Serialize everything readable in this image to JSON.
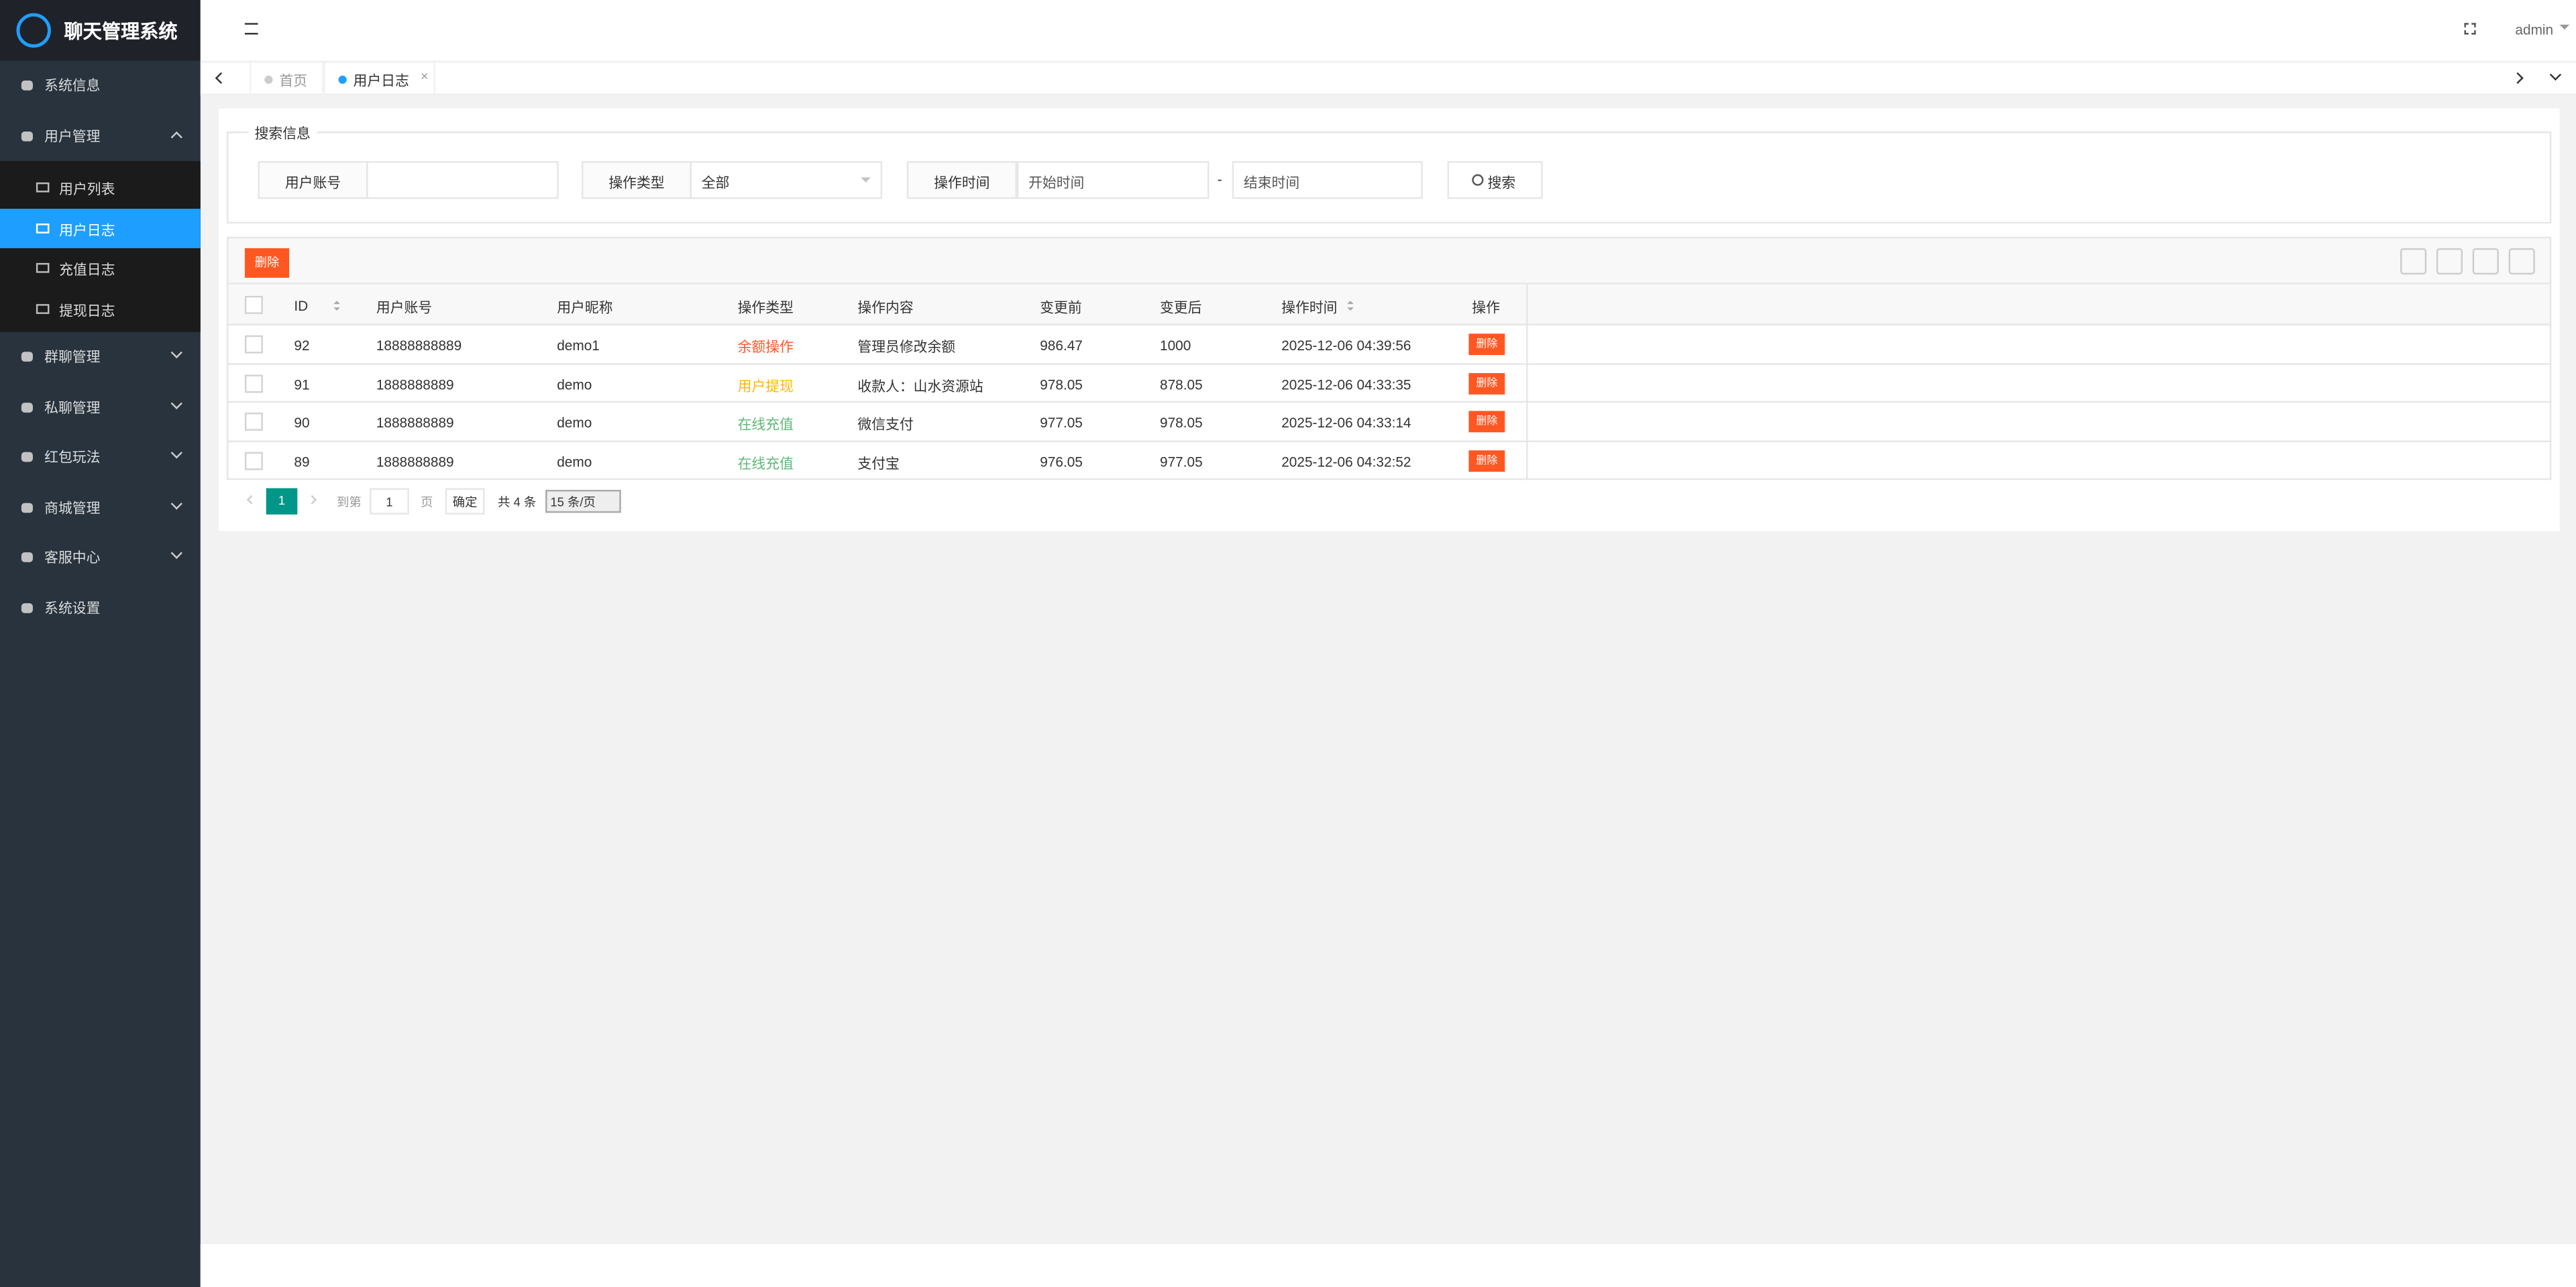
{
  "sidebar": {
    "title": "聊天管理系统",
    "menu": [
      {
        "label": "系统信息"
      },
      {
        "label": "用户管理",
        "open": true,
        "children": [
          {
            "label": "用户列表"
          },
          {
            "label": "用户日志",
            "active": true
          },
          {
            "label": "充值日志"
          },
          {
            "label": "提现日志"
          }
        ]
      },
      {
        "label": "群聊管理",
        "children": []
      },
      {
        "label": "私聊管理",
        "children": []
      },
      {
        "label": "红包玩法",
        "children": []
      },
      {
        "label": "商城管理",
        "children": []
      },
      {
        "label": "客服中心",
        "children": []
      },
      {
        "label": "系统设置"
      }
    ]
  },
  "header": {
    "user": "admin"
  },
  "tabs": [
    {
      "label": "首页"
    },
    {
      "label": "用户日志",
      "active": true
    }
  ],
  "search": {
    "legend": "搜索信息",
    "account_label": "用户账号",
    "type_label": "操作类型",
    "type_value": "全部",
    "time_label": "操作时间",
    "start_placeholder": "开始时间",
    "separator": "-",
    "end_placeholder": "结束时间",
    "button": "搜索"
  },
  "toolbar": {
    "delete": "删除"
  },
  "table": {
    "columns": [
      {
        "label": "ID",
        "sortable": true
      },
      {
        "label": "用户账号"
      },
      {
        "label": "用户昵称"
      },
      {
        "label": "操作类型"
      },
      {
        "label": "操作内容"
      },
      {
        "label": "变更前"
      },
      {
        "label": "变更后"
      },
      {
        "label": "操作时间",
        "sortable": true
      },
      {
        "label": "操作"
      }
    ],
    "rows": [
      {
        "cells": [
          "92",
          "18888888889",
          "demo1",
          "余额操作",
          "管理员修改余额",
          "986.47",
          "1000",
          "2025-12-06 04:39:56"
        ],
        "type_color": "#ff5722",
        "action": "删除"
      },
      {
        "cells": [
          "91",
          "1888888889",
          "demo",
          "用户提现",
          "收款人：山水资源站",
          "978.05",
          "878.05",
          "2025-12-06 04:33:35"
        ],
        "type_color": "#ffb800",
        "action": "删除"
      },
      {
        "cells": [
          "90",
          "1888888889",
          "demo",
          "在线充值",
          "微信支付",
          "977.05",
          "978.05",
          "2025-12-06 04:33:14"
        ],
        "type_color": "#5fb878",
        "action": "删除"
      },
      {
        "cells": [
          "89",
          "1888888889",
          "demo",
          "在线充值",
          "支付宝",
          "976.05",
          "977.05",
          "2025-12-06 04:32:52"
        ],
        "type_color": "#5fb878",
        "action": "删除"
      }
    ]
  },
  "pagination": {
    "current": "1",
    "goto": "到第",
    "page_input": "1",
    "page_unit": "页",
    "confirm": "确定",
    "total": "共 4 条",
    "size": "15 条/页"
  }
}
